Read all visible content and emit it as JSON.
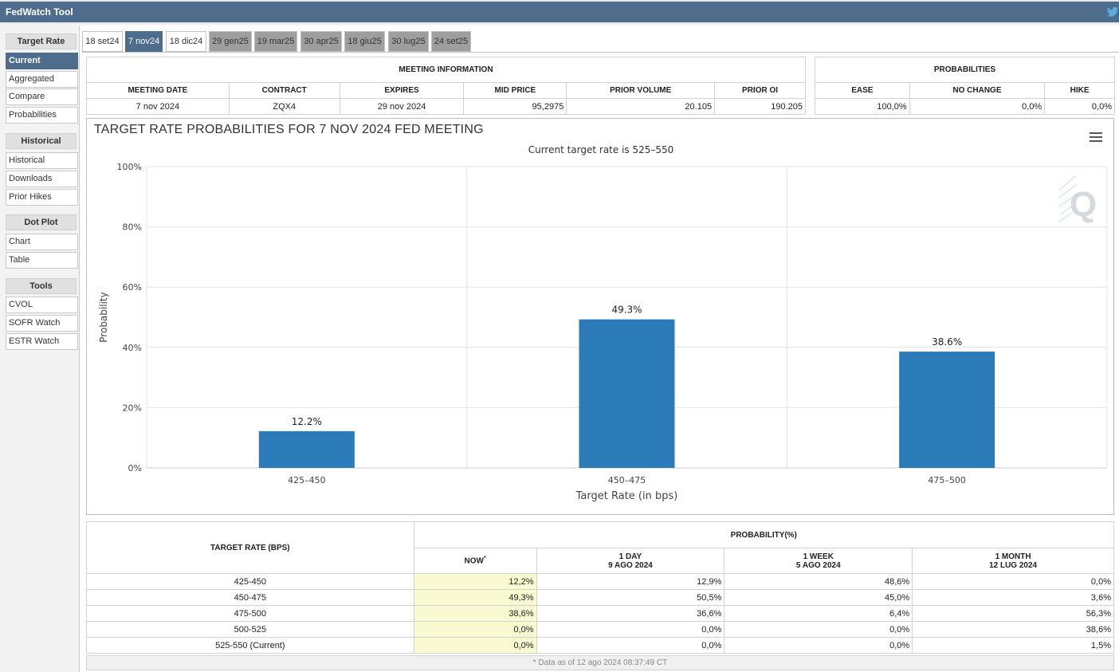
{
  "app": {
    "title": "FedWatch Tool"
  },
  "sidebar": {
    "groups": [
      {
        "label": "Target Rate",
        "items": [
          "Current",
          "Aggregated",
          "Compare",
          "Probabilities"
        ]
      },
      {
        "label": "Historical",
        "items": [
          "Historical",
          "Downloads",
          "Prior Hikes"
        ]
      },
      {
        "label": "Dot Plot",
        "items": [
          "Chart",
          "Table"
        ]
      },
      {
        "label": "Tools",
        "items": [
          "CVOL",
          "SOFR Watch",
          "ESTR Watch"
        ]
      }
    ],
    "active_item": "Current"
  },
  "tabs": [
    "18 set24",
    "7 nov24",
    "18 dic24",
    "29 gen25",
    "19 mar25",
    "30 apr25",
    "18 giu25",
    "30 lug25",
    "24 set25"
  ],
  "meeting_info": {
    "header": "MEETING INFORMATION",
    "columns": [
      "MEETING DATE",
      "CONTRACT",
      "EXPIRES",
      "MID PRICE",
      "PRIOR VOLUME",
      "PRIOR OI"
    ],
    "row": [
      "7 nov 2024",
      "ZQX4",
      "29 nov 2024",
      "95,2975",
      "20.105",
      "190.205"
    ]
  },
  "probabilities": {
    "header": "PROBABILITIES",
    "columns": [
      "EASE",
      "NO CHANGE",
      "HIKE"
    ],
    "row": [
      "100,0%",
      "0,0%",
      "0,0%"
    ]
  },
  "chart_data": {
    "type": "bar",
    "title": "TARGET RATE PROBABILITIES FOR 7 NOV 2024 FED MEETING",
    "subtitle": "Current target rate is 525–550",
    "xlabel": "Target Rate (in bps)",
    "ylabel": "Probability",
    "categories": [
      "425–450",
      "450–475",
      "475–500"
    ],
    "values": [
      12.2,
      49.3,
      38.6
    ],
    "value_labels": [
      "12.2%",
      "49.3%",
      "38.6%"
    ],
    "ylim": [
      0,
      100
    ],
    "yticks": [
      "0%",
      "20%",
      "40%",
      "60%",
      "80%",
      "100%"
    ],
    "grid": true,
    "bar_color": "#2b7bb9",
    "watermark": "Q"
  },
  "prob_table": {
    "row_header": "TARGET RATE (BPS)",
    "group_header": "PROBABILITY(%)",
    "columns": [
      {
        "line1": "NOW",
        "sup": "*",
        "line2": ""
      },
      {
        "line1": "1 DAY",
        "line2": "9 AGO 2024"
      },
      {
        "line1": "1 WEEK",
        "line2": "5 AGO 2024"
      },
      {
        "line1": "1 MONTH",
        "line2": "12 LUG 2024"
      }
    ],
    "rows": [
      [
        "425-450",
        "12,2%",
        "12,9%",
        "48,6%",
        "0,0%"
      ],
      [
        "450-475",
        "49,3%",
        "50,5%",
        "45,0%",
        "3,6%"
      ],
      [
        "475-500",
        "38,6%",
        "36,6%",
        "6,4%",
        "56,3%"
      ],
      [
        "500-525",
        "0,0%",
        "0,0%",
        "0,0%",
        "38,6%"
      ],
      [
        "525-550 (Current)",
        "0,0%",
        "0,0%",
        "0,0%",
        "1,5%"
      ]
    ],
    "footnote": "* Data as of 12 ago 2024 08:37:49 CT"
  }
}
